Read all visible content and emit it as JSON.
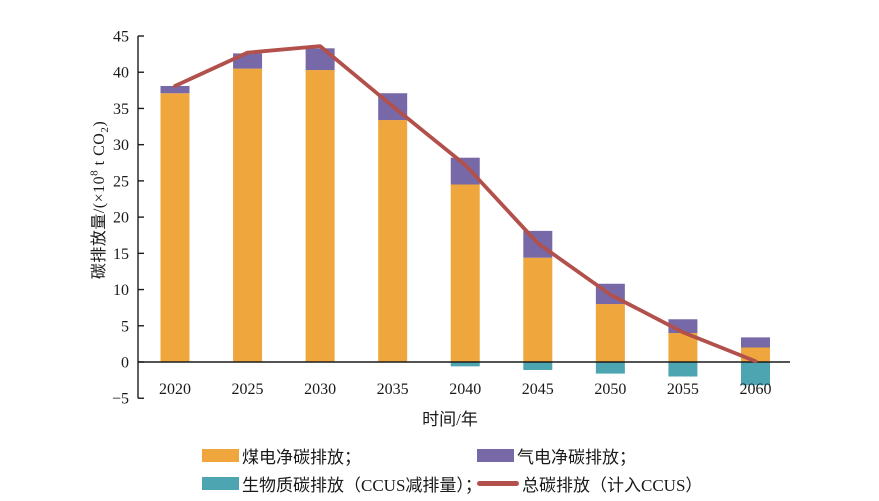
{
  "chart_data": {
    "type": "bar",
    "stacked": true,
    "title": "",
    "categories": [
      "2020",
      "2025",
      "2030",
      "2035",
      "2040",
      "2045",
      "2050",
      "2055",
      "2060"
    ],
    "series": [
      {
        "name": "煤电净碳排放",
        "kind": "bar",
        "color": "#EFA63C",
        "values": [
          37.1,
          40.5,
          40.3,
          33.4,
          24.5,
          14.4,
          8.0,
          4.0,
          2.0
        ]
      },
      {
        "name": "气电净碳排放",
        "kind": "bar",
        "color": "#7769A7",
        "values": [
          1.0,
          2.1,
          3.0,
          3.7,
          3.7,
          3.7,
          2.8,
          1.9,
          1.4
        ]
      },
      {
        "name": "生物质碳排放（CCUS减排量）",
        "kind": "bar",
        "color": "#4CA5B1",
        "values": [
          0,
          0,
          0,
          0,
          -0.6,
          -1.1,
          -1.6,
          -2.0,
          -3.2
        ]
      },
      {
        "name": "总碳排放（计入CCUS）",
        "kind": "line",
        "color": "#B2504B",
        "values": [
          38.1,
          42.7,
          43.6,
          35.3,
          27.2,
          16.4,
          9.3,
          4.1,
          0.1
        ]
      }
    ],
    "xlabel": "时间/年",
    "ylabel": "碳排放量/(×10⁸ t CO₂)",
    "ylim": [
      -5,
      45
    ],
    "y_ticks": [
      45,
      40,
      35,
      30,
      25,
      20,
      15,
      10,
      5,
      0,
      -5
    ],
    "grid": false,
    "legend_position": "bottom"
  },
  "axes": {
    "x_title": "时间/年",
    "y_label": {
      "prefix": "碳排放量/(×10",
      "sup": "8",
      "mid": " t CO",
      "sub": "2",
      "suffix": ")"
    }
  },
  "legend": {
    "items": [
      {
        "label": "煤电净碳排放；",
        "swatch": "rect",
        "color": "#EFA63C"
      },
      {
        "label": "气电净碳排放；",
        "swatch": "rect",
        "color": "#7769A7"
      },
      {
        "label": "生物质碳排放（CCUS减排量）；",
        "swatch": "rect",
        "color": "#4CA5B1"
      },
      {
        "label": "总碳排放（计入CCUS）",
        "swatch": "line",
        "color": "#B2504B"
      }
    ]
  },
  "colors": {
    "background": "#ffffff",
    "axis": "#1c1c1c",
    "text": "#1a1a1a",
    "coal": "#EFA63C",
    "gas": "#7769A7",
    "biomass": "#4CA5B1",
    "total_line": "#B2504B"
  }
}
